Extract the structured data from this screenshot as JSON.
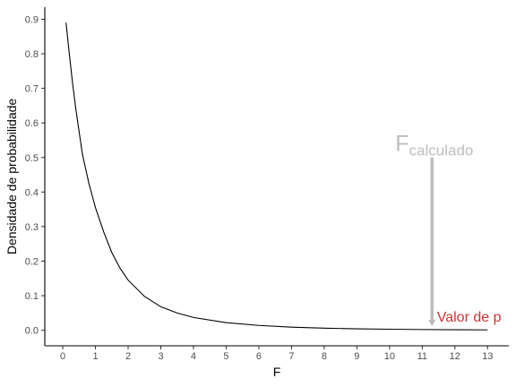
{
  "chart_data": {
    "type": "line",
    "title": "",
    "xlabel": "F",
    "ylabel": "Densidade de probabilidade",
    "xlim": [
      -0.55,
      13.65
    ],
    "ylim": [
      -0.045,
      0.935
    ],
    "xticks": [
      0,
      1,
      2,
      3,
      4,
      5,
      6,
      7,
      8,
      9,
      10,
      11,
      12,
      13
    ],
    "yticks": [
      0.0,
      0.1,
      0.2,
      0.3,
      0.4,
      0.5,
      0.6,
      0.7,
      0.8,
      0.9
    ],
    "xtick_labels": [
      "0",
      "1",
      "2",
      "3",
      "4",
      "5",
      "6",
      "7",
      "8",
      "9",
      "10",
      "11",
      "12",
      "13"
    ],
    "ytick_labels": [
      "0.0",
      "0.1",
      "0.2",
      "0.3",
      "0.4",
      "0.5",
      "0.6",
      "0.7",
      "0.8",
      "0.9"
    ],
    "grid": false,
    "line_color": "#000000",
    "series": [
      {
        "x": [
          0.1,
          0.2,
          0.3,
          0.4,
          0.5,
          0.6,
          0.8,
          1.0,
          1.25,
          1.5,
          1.75,
          2.0,
          2.5,
          3.0,
          3.5,
          4.0,
          5.0,
          6.0,
          7.0,
          8.0,
          9.0,
          10.0,
          11.0,
          12.0,
          13.0
        ],
        "y": [
          0.89,
          0.8,
          0.715,
          0.64,
          0.575,
          0.51,
          0.425,
          0.355,
          0.285,
          0.225,
          0.18,
          0.145,
          0.098,
          0.068,
          0.05,
          0.037,
          0.022,
          0.014,
          0.009,
          0.006,
          0.004,
          0.003,
          0.002,
          0.0015,
          0.001
        ]
      }
    ],
    "annotations": {
      "f_calc": {
        "main": "F",
        "sub": "calculado",
        "color": "#bdbdbd",
        "x": 11.3,
        "y_text": 0.54,
        "arrow_y_from": 0.5,
        "arrow_y_to": 0.012
      },
      "p_value": {
        "label": "Valor de p",
        "color": "#cc3333",
        "x": 11.45,
        "y": 0.028
      }
    }
  }
}
